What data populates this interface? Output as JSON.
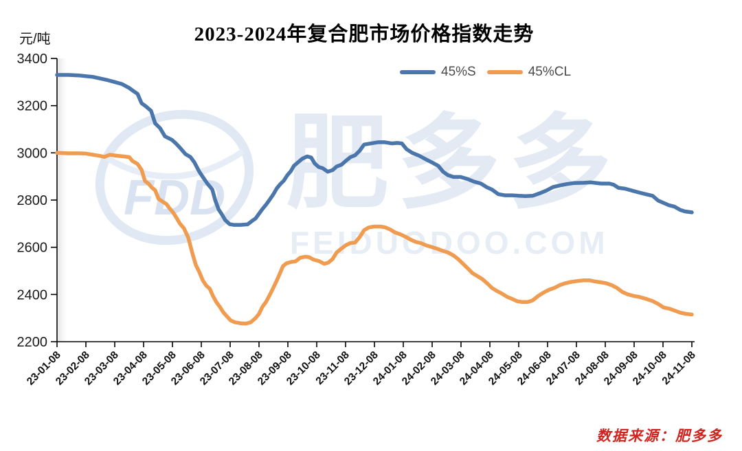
{
  "title": "2023-2024年复合肥市场价格指数走势",
  "y_axis_unit": "元/吨",
  "legend": [
    {
      "label": "45%S",
      "color": "#4a76ac"
    },
    {
      "label": "45%CL",
      "color": "#ef9b50"
    }
  ],
  "source_note": "数据来源：肥多多",
  "watermark": {
    "logo_text": "FDD",
    "brand_text": "肥多多",
    "domain_text": "FEIDUODOO.COM",
    "color": "#e3eaf4"
  },
  "chart_data": {
    "type": "line",
    "title": "2023-2024年复合肥市场价格指数走势",
    "xlabel": "",
    "ylabel": "元/吨",
    "ylim": [
      2200,
      3400
    ],
    "y_ticks": [
      3400,
      3200,
      3000,
      2800,
      2600,
      2400,
      2200
    ],
    "grid": false,
    "legend_position": "top",
    "x_unit": "months_since_23-01-08",
    "x_tick_labels": [
      "23-01-08",
      "23-02-08",
      "23-03-08",
      "23-04-08",
      "23-05-08",
      "23-06-08",
      "23-07-08",
      "23-08-08",
      "23-09-08",
      "23-10-08",
      "23-11-08",
      "23-12-08",
      "24-01-08",
      "24-02-08",
      "24-03-08",
      "24-04-08",
      "24-05-08",
      "24-06-08",
      "24-07-08",
      "24-08-08",
      "24-09-08",
      "24-10-08",
      "24-11-08"
    ],
    "series": [
      {
        "name": "45%S",
        "color": "#4a76ac",
        "points": [
          [
            0,
            3330
          ],
          [
            0.4,
            3330
          ],
          [
            0.76,
            3328
          ],
          [
            1,
            3325
          ],
          [
            1.24,
            3322
          ],
          [
            1.5,
            3315
          ],
          [
            1.76,
            3308
          ],
          [
            2,
            3300
          ],
          [
            2.24,
            3292
          ],
          [
            2.5,
            3275
          ],
          [
            2.67,
            3260
          ],
          [
            2.79,
            3250
          ],
          [
            2.93,
            3210
          ],
          [
            3.07,
            3198
          ],
          [
            3.26,
            3178
          ],
          [
            3.4,
            3125
          ],
          [
            3.57,
            3105
          ],
          [
            3.74,
            3070
          ],
          [
            3.98,
            3055
          ],
          [
            4.12,
            3040
          ],
          [
            4.26,
            3022
          ],
          [
            4.45,
            2995
          ],
          [
            4.62,
            2983
          ],
          [
            4.76,
            2960
          ],
          [
            4.93,
            2920
          ],
          [
            5.07,
            2895
          ],
          [
            5.21,
            2870
          ],
          [
            5.38,
            2845
          ],
          [
            5.48,
            2800
          ],
          [
            5.6,
            2760
          ],
          [
            5.71,
            2740
          ],
          [
            5.83,
            2715
          ],
          [
            5.98,
            2698
          ],
          [
            6.12,
            2695
          ],
          [
            6.36,
            2695
          ],
          [
            6.6,
            2697
          ],
          [
            6.74,
            2710
          ],
          [
            6.88,
            2722
          ],
          [
            7,
            2742
          ],
          [
            7.12,
            2762
          ],
          [
            7.24,
            2780
          ],
          [
            7.36,
            2800
          ],
          [
            7.5,
            2825
          ],
          [
            7.62,
            2850
          ],
          [
            7.74,
            2868
          ],
          [
            7.86,
            2882
          ],
          [
            7.98,
            2905
          ],
          [
            8.1,
            2922
          ],
          [
            8.21,
            2945
          ],
          [
            8.33,
            2958
          ],
          [
            8.5,
            2975
          ],
          [
            8.67,
            2985
          ],
          [
            8.81,
            2980
          ],
          [
            8.93,
            2955
          ],
          [
            9.07,
            2940
          ],
          [
            9.21,
            2935
          ],
          [
            9.38,
            2920
          ],
          [
            9.55,
            2927
          ],
          [
            9.69,
            2942
          ],
          [
            9.86,
            2950
          ],
          [
            10,
            2965
          ],
          [
            10.17,
            2982
          ],
          [
            10.33,
            2990
          ],
          [
            10.48,
            3008
          ],
          [
            10.64,
            3035
          ],
          [
            10.88,
            3040
          ],
          [
            11.12,
            3045
          ],
          [
            11.36,
            3045
          ],
          [
            11.6,
            3040
          ],
          [
            11.79,
            3042
          ],
          [
            11.95,
            3040
          ],
          [
            12.12,
            3015
          ],
          [
            12.31,
            3000
          ],
          [
            12.55,
            2988
          ],
          [
            12.79,
            2972
          ],
          [
            13.02,
            2958
          ],
          [
            13.21,
            2945
          ],
          [
            13.38,
            2920
          ],
          [
            13.55,
            2905
          ],
          [
            13.74,
            2898
          ],
          [
            13.98,
            2898
          ],
          [
            14.21,
            2890
          ],
          [
            14.45,
            2878
          ],
          [
            14.69,
            2870
          ],
          [
            14.88,
            2855
          ],
          [
            15.07,
            2845
          ],
          [
            15.29,
            2825
          ],
          [
            15.52,
            2820
          ],
          [
            15.76,
            2820
          ],
          [
            16,
            2818
          ],
          [
            16.24,
            2817
          ],
          [
            16.48,
            2818
          ],
          [
            16.71,
            2828
          ],
          [
            16.95,
            2840
          ],
          [
            17.19,
            2855
          ],
          [
            17.43,
            2862
          ],
          [
            17.67,
            2868
          ],
          [
            17.9,
            2872
          ],
          [
            18.26,
            2873
          ],
          [
            18.5,
            2875
          ],
          [
            18.86,
            2870
          ],
          [
            19.14,
            2870
          ],
          [
            19.29,
            2865
          ],
          [
            19.45,
            2852
          ],
          [
            19.69,
            2848
          ],
          [
            19.93,
            2840
          ],
          [
            20.17,
            2832
          ],
          [
            20.4,
            2825
          ],
          [
            20.64,
            2818
          ],
          [
            20.83,
            2798
          ],
          [
            21.02,
            2788
          ],
          [
            21.21,
            2778
          ],
          [
            21.4,
            2772
          ],
          [
            21.6,
            2758
          ],
          [
            21.76,
            2752
          ],
          [
            22,
            2748
          ]
        ]
      },
      {
        "name": "45%CL",
        "color": "#ef9b50",
        "points": [
          [
            0,
            3000
          ],
          [
            0.4,
            2998
          ],
          [
            0.76,
            2998
          ],
          [
            1,
            2997
          ],
          [
            1.24,
            2992
          ],
          [
            1.5,
            2987
          ],
          [
            1.64,
            2983
          ],
          [
            1.83,
            2992
          ],
          [
            2.07,
            2988
          ],
          [
            2.31,
            2985
          ],
          [
            2.5,
            2982
          ],
          [
            2.62,
            2965
          ],
          [
            2.79,
            2953
          ],
          [
            2.93,
            2928
          ],
          [
            3.05,
            2880
          ],
          [
            3.17,
            2870
          ],
          [
            3.29,
            2852
          ],
          [
            3.4,
            2842
          ],
          [
            3.52,
            2805
          ],
          [
            3.64,
            2795
          ],
          [
            3.79,
            2783
          ],
          [
            3.9,
            2765
          ],
          [
            4.02,
            2748
          ],
          [
            4.14,
            2725
          ],
          [
            4.26,
            2700
          ],
          [
            4.4,
            2680
          ],
          [
            4.55,
            2640
          ],
          [
            4.69,
            2575
          ],
          [
            4.81,
            2525
          ],
          [
            4.93,
            2495
          ],
          [
            5.05,
            2460
          ],
          [
            5.17,
            2438
          ],
          [
            5.29,
            2425
          ],
          [
            5.4,
            2395
          ],
          [
            5.52,
            2368
          ],
          [
            5.64,
            2348
          ],
          [
            5.76,
            2325
          ],
          [
            5.88,
            2308
          ],
          [
            6.02,
            2290
          ],
          [
            6.17,
            2282
          ],
          [
            6.36,
            2278
          ],
          [
            6.55,
            2277
          ],
          [
            6.71,
            2282
          ],
          [
            6.88,
            2300
          ],
          [
            7,
            2318
          ],
          [
            7.12,
            2348
          ],
          [
            7.24,
            2368
          ],
          [
            7.36,
            2395
          ],
          [
            7.48,
            2425
          ],
          [
            7.6,
            2455
          ],
          [
            7.71,
            2485
          ],
          [
            7.83,
            2520
          ],
          [
            7.95,
            2532
          ],
          [
            8.12,
            2538
          ],
          [
            8.26,
            2540
          ],
          [
            8.43,
            2556
          ],
          [
            8.6,
            2560
          ],
          [
            8.74,
            2558
          ],
          [
            8.88,
            2548
          ],
          [
            9.07,
            2542
          ],
          [
            9.26,
            2530
          ],
          [
            9.4,
            2535
          ],
          [
            9.55,
            2550
          ],
          [
            9.69,
            2578
          ],
          [
            9.86,
            2595
          ],
          [
            10,
            2608
          ],
          [
            10.17,
            2618
          ],
          [
            10.33,
            2620
          ],
          [
            10.5,
            2645
          ],
          [
            10.64,
            2672
          ],
          [
            10.81,
            2684
          ],
          [
            11,
            2688
          ],
          [
            11.19,
            2688
          ],
          [
            11.36,
            2685
          ],
          [
            11.55,
            2675
          ],
          [
            11.71,
            2663
          ],
          [
            11.9,
            2655
          ],
          [
            12.07,
            2645
          ],
          [
            12.26,
            2632
          ],
          [
            12.43,
            2623
          ],
          [
            12.6,
            2618
          ],
          [
            12.79,
            2608
          ],
          [
            12.98,
            2601
          ],
          [
            13.17,
            2594
          ],
          [
            13.36,
            2585
          ],
          [
            13.55,
            2578
          ],
          [
            13.74,
            2565
          ],
          [
            13.9,
            2550
          ],
          [
            14.07,
            2530
          ],
          [
            14.24,
            2510
          ],
          [
            14.4,
            2490
          ],
          [
            14.57,
            2478
          ],
          [
            14.74,
            2465
          ],
          [
            14.9,
            2448
          ],
          [
            15.07,
            2428
          ],
          [
            15.24,
            2415
          ],
          [
            15.4,
            2405
          ],
          [
            15.6,
            2390
          ],
          [
            15.76,
            2382
          ],
          [
            15.93,
            2372
          ],
          [
            16.12,
            2368
          ],
          [
            16.31,
            2368
          ],
          [
            16.48,
            2375
          ],
          [
            16.67,
            2393
          ],
          [
            16.86,
            2408
          ],
          [
            17.05,
            2420
          ],
          [
            17.24,
            2428
          ],
          [
            17.43,
            2440
          ],
          [
            17.62,
            2448
          ],
          [
            17.81,
            2453
          ],
          [
            18.02,
            2457
          ],
          [
            18.26,
            2460
          ],
          [
            18.45,
            2460
          ],
          [
            18.64,
            2455
          ],
          [
            18.83,
            2452
          ],
          [
            19.02,
            2448
          ],
          [
            19.21,
            2440
          ],
          [
            19.4,
            2428
          ],
          [
            19.6,
            2410
          ],
          [
            19.79,
            2400
          ],
          [
            19.98,
            2394
          ],
          [
            20.17,
            2390
          ],
          [
            20.4,
            2382
          ],
          [
            20.64,
            2372
          ],
          [
            20.83,
            2360
          ],
          [
            21.02,
            2345
          ],
          [
            21.21,
            2340
          ],
          [
            21.4,
            2332
          ],
          [
            21.6,
            2323
          ],
          [
            21.79,
            2318
          ],
          [
            22,
            2315
          ]
        ]
      }
    ]
  }
}
